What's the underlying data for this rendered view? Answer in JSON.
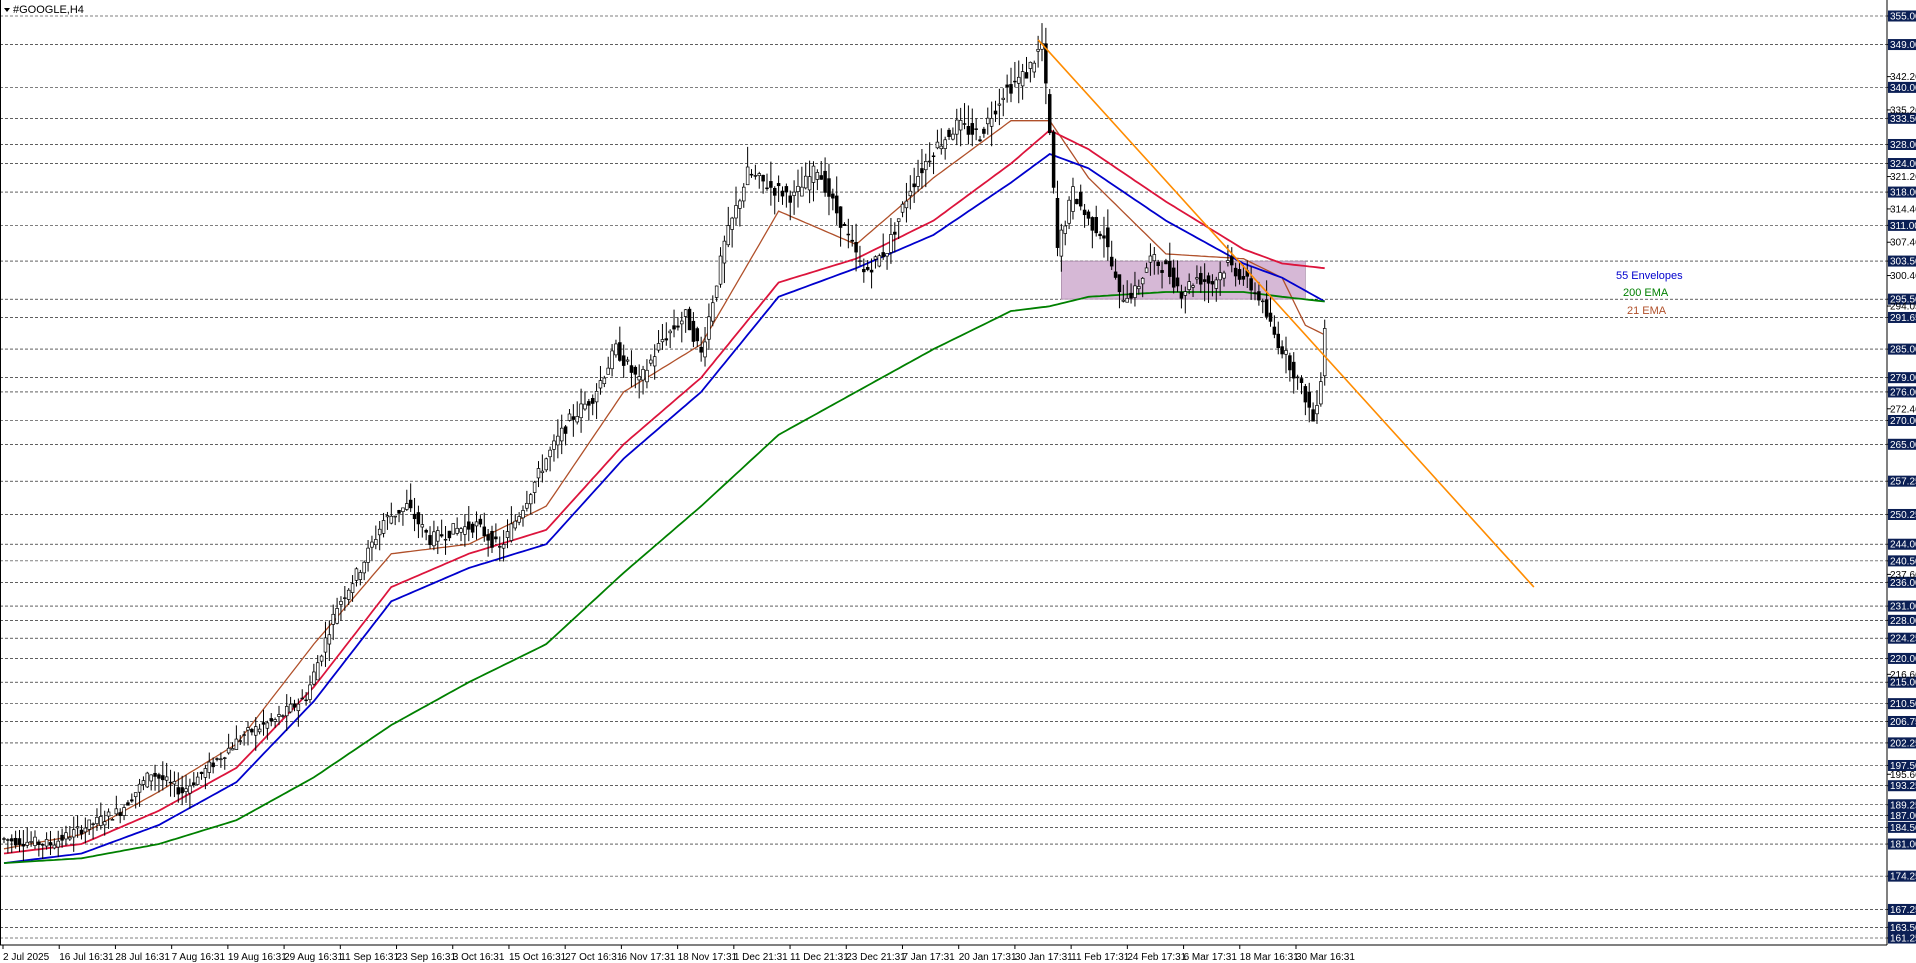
{
  "window": {
    "title": "#GOOGLE,H4"
  },
  "colors": {
    "ema21": "#b0502a",
    "envelope_upper": "#dc143c",
    "envelope_lower": "#0000cd",
    "ema200": "#008000",
    "trendline": "#ff8c00",
    "zone_fill": "#c8a0c8",
    "level_tag": "#0b1f55",
    "grid": "#000000",
    "candle": "#000000"
  },
  "chart_data": {
    "type": "candlestick",
    "title": "#GOOGLE,H4",
    "ylim": [
      161.25,
      355.0
    ],
    "x_tick_labels": [
      "2 Jul 2025",
      "16 Jul 16:31",
      "28 Jul 16:31",
      "7 Aug 16:31",
      "19 Aug 16:31",
      "29 Aug 16:31",
      "11 Sep 16:31",
      "23 Sep 16:31",
      "3 Oct 16:31",
      "15 Oct 16:31",
      "27 Oct 16:31",
      "6 Nov 17:31",
      "18 Nov 17:31",
      "1 Dec 21:31",
      "11 Dec 21:31",
      "23 Dec 21:31",
      "7 Jan 17:31",
      "20 Jan 17:31",
      "30 Jan 17:31",
      "11 Feb 17:31",
      "24 Feb 17:31",
      "6 Mar 17:31",
      "18 Mar 16:31",
      "30 Mar 16:31"
    ],
    "y_scale_labels": [
      "342.26",
      "335.26",
      "321.26",
      "314.46",
      "307.46",
      "300.46",
      "294.05",
      "272.46",
      "237.66",
      "216.66",
      "195.66"
    ],
    "level_tags": [
      "355.00",
      "349.00",
      "340.00",
      "333.50",
      "328.00",
      "324.00",
      "318.00",
      "311.00",
      "303.50",
      "295.50",
      "291.65",
      "285.00",
      "279.00",
      "276.00",
      "270.00",
      "265.00",
      "257.25",
      "250.25",
      "244.00",
      "240.50",
      "236.00",
      "231.00",
      "228.00",
      "224.25",
      "220.00",
      "215.00",
      "210.50",
      "206.75",
      "202.25",
      "197.50",
      "193.25",
      "189.25",
      "187.00",
      "184.50",
      "181.00",
      "174.25",
      "167.25",
      "163.50",
      "161.25"
    ],
    "price_path": [
      [
        0,
        182
      ],
      [
        12,
        181
      ],
      [
        22,
        185
      ],
      [
        30,
        188
      ],
      [
        38,
        196
      ],
      [
        46,
        192
      ],
      [
        54,
        198
      ],
      [
        62,
        204
      ],
      [
        70,
        207
      ],
      [
        78,
        212
      ],
      [
        86,
        231
      ],
      [
        92,
        239
      ],
      [
        98,
        249
      ],
      [
        104,
        252
      ],
      [
        110,
        245
      ],
      [
        116,
        247
      ],
      [
        122,
        248
      ],
      [
        128,
        243
      ],
      [
        134,
        252
      ],
      [
        140,
        262
      ],
      [
        146,
        270
      ],
      [
        152,
        275
      ],
      [
        158,
        285
      ],
      [
        164,
        278
      ],
      [
        170,
        287
      ],
      [
        176,
        292
      ],
      [
        180,
        284
      ],
      [
        186,
        307
      ],
      [
        192,
        322
      ],
      [
        198,
        319
      ],
      [
        204,
        317
      ],
      [
        210,
        323
      ],
      [
        216,
        312
      ],
      [
        222,
        301
      ],
      [
        228,
        306
      ],
      [
        234,
        319
      ],
      [
        240,
        327
      ],
      [
        246,
        332
      ],
      [
        252,
        330
      ],
      [
        258,
        339
      ],
      [
        264,
        343
      ],
      [
        268,
        349
      ],
      [
        270,
        330
      ],
      [
        272,
        306
      ],
      [
        276,
        318
      ],
      [
        280,
        312
      ],
      [
        284,
        309
      ],
      [
        288,
        296
      ],
      [
        292,
        297
      ],
      [
        296,
        304
      ],
      [
        300,
        302
      ],
      [
        304,
        297
      ],
      [
        308,
        300
      ],
      [
        312,
        299
      ],
      [
        316,
        303
      ],
      [
        320,
        300
      ],
      [
        324,
        296
      ],
      [
        328,
        288
      ],
      [
        332,
        282
      ],
      [
        336,
        275
      ],
      [
        338,
        270
      ],
      [
        340,
        279
      ],
      [
        341,
        290
      ]
    ],
    "series": [
      {
        "name": "21 EMA",
        "values": [
          [
            0,
            180
          ],
          [
            20,
            183
          ],
          [
            40,
            192
          ],
          [
            60,
            202
          ],
          [
            80,
            223
          ],
          [
            100,
            242
          ],
          [
            120,
            244
          ],
          [
            140,
            252
          ],
          [
            160,
            276
          ],
          [
            180,
            286
          ],
          [
            200,
            314
          ],
          [
            220,
            307
          ],
          [
            240,
            321
          ],
          [
            260,
            333
          ],
          [
            270,
            333
          ],
          [
            280,
            321
          ],
          [
            300,
            305
          ],
          [
            320,
            304
          ],
          [
            330,
            300
          ],
          [
            336,
            290
          ],
          [
            341,
            288
          ]
        ]
      },
      {
        "name": "55 Envelopes",
        "values": [
          [
            0,
            179
          ],
          [
            20,
            181
          ],
          [
            40,
            188
          ],
          [
            60,
            197
          ],
          [
            80,
            214
          ],
          [
            100,
            235
          ],
          [
            120,
            242
          ],
          [
            140,
            247
          ],
          [
            160,
            265
          ],
          [
            180,
            279
          ],
          [
            200,
            299
          ],
          [
            220,
            304
          ],
          [
            240,
            312
          ],
          [
            260,
            324
          ],
          [
            270,
            331
          ],
          [
            280,
            327
          ],
          [
            300,
            316
          ],
          [
            320,
            306
          ],
          [
            330,
            303
          ],
          [
            341,
            302
          ]
        ]
      },
      {
        "name": "55 Envelopes",
        "values": [
          [
            0,
            177
          ],
          [
            20,
            179
          ],
          [
            40,
            185
          ],
          [
            60,
            194
          ],
          [
            80,
            211
          ],
          [
            100,
            232
          ],
          [
            120,
            239
          ],
          [
            140,
            244
          ],
          [
            160,
            262
          ],
          [
            180,
            276
          ],
          [
            200,
            296
          ],
          [
            220,
            302
          ],
          [
            240,
            309
          ],
          [
            260,
            320
          ],
          [
            270,
            326
          ],
          [
            280,
            323
          ],
          [
            300,
            312
          ],
          [
            320,
            303
          ],
          [
            330,
            300
          ],
          [
            341,
            295
          ]
        ]
      },
      {
        "name": "200 EMA",
        "values": [
          [
            0,
            177
          ],
          [
            20,
            178
          ],
          [
            40,
            181
          ],
          [
            60,
            186
          ],
          [
            80,
            195
          ],
          [
            100,
            206
          ],
          [
            120,
            215
          ],
          [
            140,
            223
          ],
          [
            160,
            238
          ],
          [
            180,
            252
          ],
          [
            200,
            267
          ],
          [
            220,
            276
          ],
          [
            240,
            285
          ],
          [
            260,
            293
          ],
          [
            270,
            294
          ],
          [
            280,
            296
          ],
          [
            300,
            297
          ],
          [
            320,
            297
          ],
          [
            330,
            296
          ],
          [
            341,
            295
          ]
        ]
      }
    ],
    "annotations": {
      "envelopes_label": "55 Envelopes",
      "ema200_label": "200 EMA",
      "ema21_label": "21 EMA",
      "trendline": {
        "from": [
          267,
          350
        ],
        "to": [
          395,
          235
        ]
      },
      "zone": {
        "x": [
          273,
          336
        ],
        "y": [
          295.5,
          303.5
        ]
      }
    }
  }
}
